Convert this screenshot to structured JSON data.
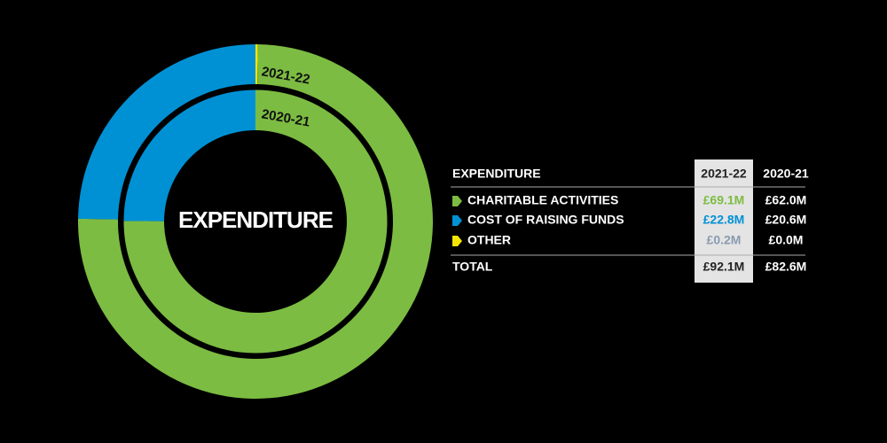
{
  "chart_data": {
    "type": "donut",
    "title": "EXPENDITURE",
    "table_title": "EXPENDITURE",
    "categories": [
      "CHARITABLE ACTIVITIES",
      "COST OF RAISING FUNDS",
      "OTHER"
    ],
    "colors": [
      "#7cbc42",
      "#0091d5",
      "#f2e600"
    ],
    "series": [
      {
        "name": "2021-22",
        "values": [
          69.1,
          22.8,
          0.2
        ],
        "value_labels": [
          "£69.1M",
          "£22.8M",
          "£0.2M"
        ],
        "total": "£92.1M"
      },
      {
        "name": "2020-21",
        "values": [
          62.0,
          20.6,
          0.0
        ],
        "value_labels": [
          "£62.0M",
          "£20.6M",
          "£0.0M"
        ],
        "total": "£82.6M"
      }
    ],
    "total_label": "TOTAL"
  }
}
